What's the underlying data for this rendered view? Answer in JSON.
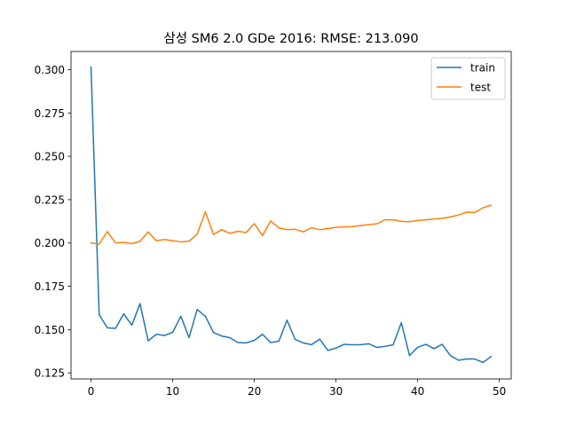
{
  "chart_data": {
    "type": "line",
    "title": "삼성 SM6 2.0 GDe 2016: RMSE: 213.090",
    "xlabel": "",
    "ylabel": "",
    "xlim": [
      -2.45,
      51.45
    ],
    "ylim": [
      0.1215,
      0.3105
    ],
    "xticks": [
      0,
      10,
      20,
      30,
      40,
      50
    ],
    "yticks": [
      0.125,
      0.15,
      0.175,
      0.2,
      0.225,
      0.25,
      0.275,
      0.3
    ],
    "xtick_labels": [
      "0",
      "10",
      "20",
      "30",
      "40",
      "50"
    ],
    "ytick_labels": [
      "0.125",
      "0.150",
      "0.175",
      "0.200",
      "0.225",
      "0.250",
      "0.275",
      "0.300"
    ],
    "grid": false,
    "legend_position": "upper right",
    "x": [
      0,
      1,
      2,
      3,
      4,
      5,
      6,
      7,
      8,
      9,
      10,
      11,
      12,
      13,
      14,
      15,
      16,
      17,
      18,
      19,
      20,
      21,
      22,
      23,
      24,
      25,
      26,
      27,
      28,
      29,
      30,
      31,
      32,
      33,
      34,
      35,
      36,
      37,
      38,
      39,
      40,
      41,
      42,
      43,
      44,
      45,
      46,
      47,
      48,
      49
    ],
    "series": [
      {
        "name": "train",
        "color": "#1f77b4",
        "values": [
          0.3015,
          0.1586,
          0.151,
          0.1507,
          0.1591,
          0.1525,
          0.165,
          0.1435,
          0.1473,
          0.1466,
          0.1484,
          0.1577,
          0.1453,
          0.1616,
          0.1577,
          0.1483,
          0.1463,
          0.1453,
          0.1425,
          0.1423,
          0.1438,
          0.1473,
          0.1425,
          0.1433,
          0.1554,
          0.1443,
          0.1423,
          0.1413,
          0.1445,
          0.138,
          0.1393,
          0.1415,
          0.1412,
          0.1413,
          0.1418,
          0.1397,
          0.1403,
          0.1413,
          0.154,
          0.135,
          0.1398,
          0.1415,
          0.139,
          0.1415,
          0.135,
          0.1323,
          0.133,
          0.133,
          0.131,
          0.1345
        ]
      },
      {
        "name": "test",
        "color": "#ff7f0e",
        "values": [
          0.2,
          0.1993,
          0.2066,
          0.2,
          0.2003,
          0.1996,
          0.2009,
          0.2064,
          0.2013,
          0.202,
          0.2013,
          0.2006,
          0.201,
          0.2051,
          0.218,
          0.2049,
          0.2077,
          0.2055,
          0.2067,
          0.206,
          0.2112,
          0.2042,
          0.2127,
          0.2087,
          0.2077,
          0.2079,
          0.2064,
          0.2088,
          0.2077,
          0.2083,
          0.209,
          0.2092,
          0.2094,
          0.21,
          0.2106,
          0.211,
          0.2134,
          0.2134,
          0.2124,
          0.2123,
          0.213,
          0.2133,
          0.2138,
          0.2142,
          0.215,
          0.2161,
          0.2178,
          0.2176,
          0.2203,
          0.2218
        ]
      }
    ]
  }
}
